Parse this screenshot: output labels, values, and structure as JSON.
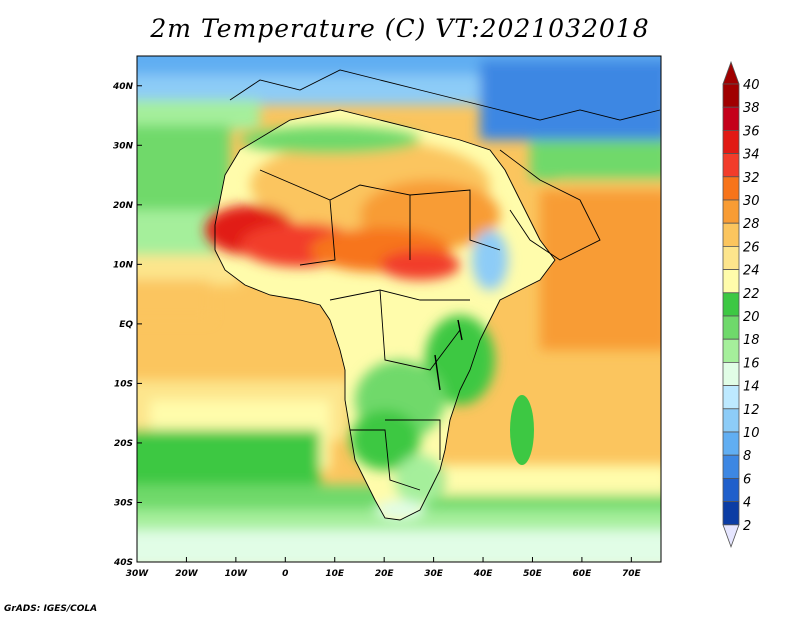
{
  "title": "2m Temperature (C) VT:2021032018",
  "credit": "GrADS: IGES/COLA",
  "map": {
    "lon_range": [
      -30,
      76
    ],
    "lat_range": [
      -40,
      45
    ],
    "x_ticks": [
      {
        "value": -30,
        "label": "30W"
      },
      {
        "value": -20,
        "label": "20W"
      },
      {
        "value": -10,
        "label": "10W"
      },
      {
        "value": 0,
        "label": "0"
      },
      {
        "value": 10,
        "label": "10E"
      },
      {
        "value": 20,
        "label": "20E"
      },
      {
        "value": 30,
        "label": "30E"
      },
      {
        "value": 40,
        "label": "40E"
      },
      {
        "value": 50,
        "label": "50E"
      },
      {
        "value": 60,
        "label": "60E"
      },
      {
        "value": 70,
        "label": "70E"
      }
    ],
    "y_ticks": [
      {
        "value": 40,
        "label": "40N"
      },
      {
        "value": 30,
        "label": "30N"
      },
      {
        "value": 20,
        "label": "20N"
      },
      {
        "value": 10,
        "label": "10N"
      },
      {
        "value": 0,
        "label": "EQ"
      },
      {
        "value": -10,
        "label": "10S"
      },
      {
        "value": -20,
        "label": "20S"
      },
      {
        "value": -30,
        "label": "30S"
      },
      {
        "value": -40,
        "label": "40S"
      }
    ]
  },
  "colorbar": {
    "levels": [
      {
        "label": "40",
        "color": "#a00000"
      },
      {
        "label": "38",
        "color": "#c4001a"
      },
      {
        "label": "36",
        "color": "#e11a14"
      },
      {
        "label": "34",
        "color": "#f23c2a"
      },
      {
        "label": "32",
        "color": "#f7741a"
      },
      {
        "label": "30",
        "color": "#f89c34"
      },
      {
        "label": "28",
        "color": "#fbc55e"
      },
      {
        "label": "26",
        "color": "#fde58c"
      },
      {
        "label": "24",
        "color": "#fffcab"
      },
      {
        "label": "22",
        "color": "#3dc843"
      },
      {
        "label": "20",
        "color": "#6fd96b"
      },
      {
        "label": "18",
        "color": "#a5ef9b"
      },
      {
        "label": "16",
        "color": "#e1fde6"
      },
      {
        "label": "14",
        "color": "#bde9ff"
      },
      {
        "label": "12",
        "color": "#8dccf7"
      },
      {
        "label": "10",
        "color": "#61aef2"
      },
      {
        "label": "8",
        "color": "#3d87e3"
      },
      {
        "label": "6",
        "color": "#1f5fcb"
      },
      {
        "label": "4",
        "color": "#0c3da4"
      },
      {
        "label": "2",
        "color": "#000d78"
      }
    ],
    "top_color": "#a00000",
    "bottom_color": "#e6e6ff"
  }
}
